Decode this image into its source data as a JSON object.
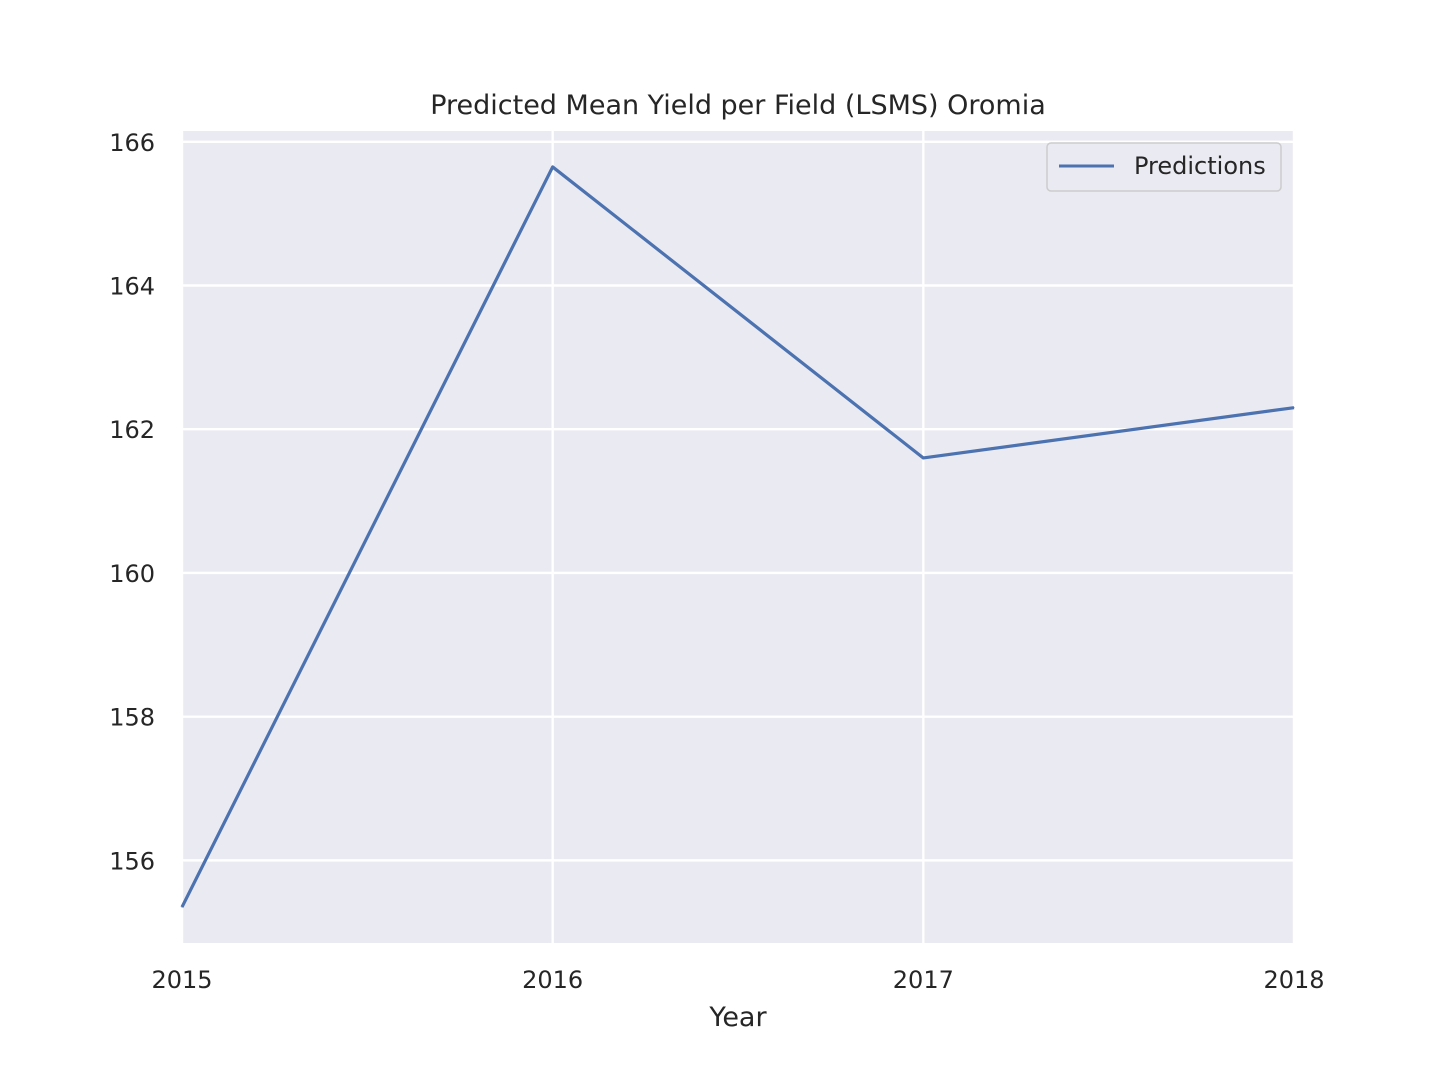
{
  "chart_data": {
    "type": "line",
    "title": "Predicted Mean Yield per Field (LSMS) Oromia",
    "xlabel": "Year",
    "ylabel": "",
    "x": [
      2015,
      2016,
      2017,
      2018
    ],
    "series": [
      {
        "name": "Predictions",
        "values": [
          155.35,
          165.65,
          161.6,
          162.3
        ]
      }
    ],
    "xlim": [
      2015,
      2018
    ],
    "ylim": [
      154.85,
      166.15
    ],
    "xticks": [
      2015,
      2016,
      2017,
      2018
    ],
    "xtick_labels": [
      "2015",
      "2016",
      "2017",
      "2018"
    ],
    "yticks": [
      156,
      158,
      160,
      162,
      164,
      166
    ],
    "ytick_labels": [
      "156",
      "158",
      "160",
      "162",
      "164",
      "166"
    ],
    "grid": true,
    "legend_position": "top-right",
    "colors": {
      "background": "#eaeaf2",
      "grid": "#ffffff",
      "series": "#4c72b0"
    }
  }
}
